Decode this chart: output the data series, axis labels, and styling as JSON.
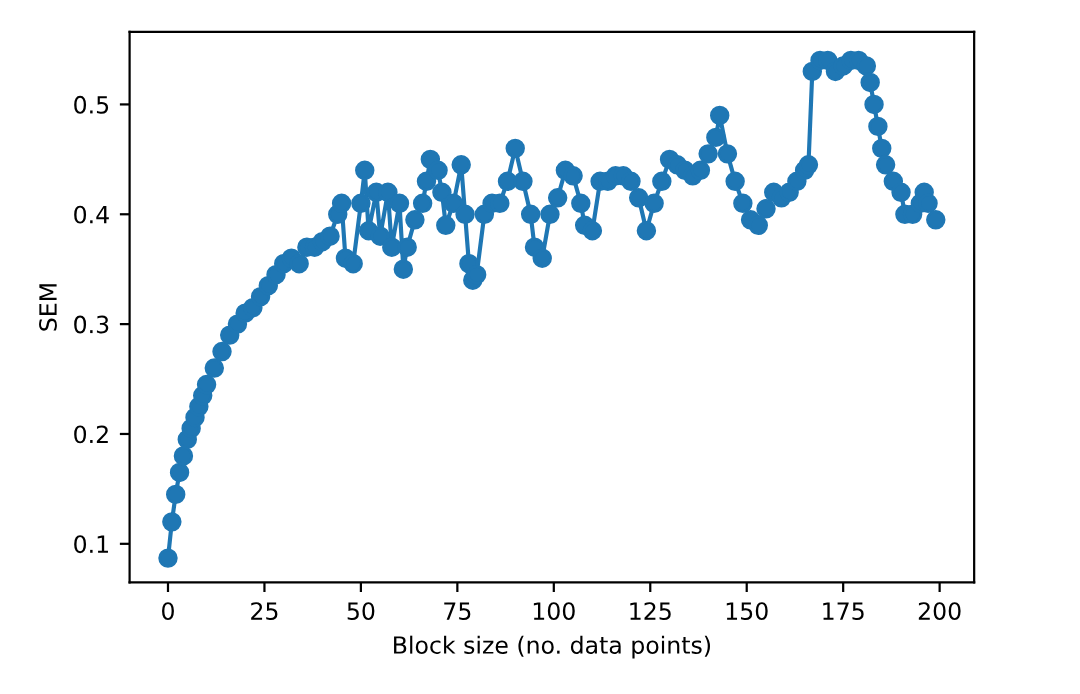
{
  "chart_data": {
    "type": "line",
    "xlabel": "Block size (no. data points)",
    "ylabel": "SEM",
    "x": [
      0,
      1,
      2,
      3,
      4,
      5,
      6,
      7,
      8,
      9,
      10,
      12,
      14,
      16,
      18,
      20,
      22,
      24,
      26,
      28,
      30,
      32,
      34,
      36,
      38,
      40,
      42,
      44,
      45,
      46,
      48,
      50,
      51,
      52,
      54,
      55,
      57,
      58,
      60,
      61,
      62,
      64,
      66,
      67,
      68,
      70,
      71,
      72,
      74,
      76,
      77,
      78,
      79,
      80,
      82,
      84,
      86,
      88,
      90,
      92,
      94,
      95,
      97,
      99,
      101,
      103,
      105,
      107,
      108,
      110,
      112,
      114,
      116,
      118,
      120,
      122,
      124,
      126,
      128,
      130,
      132,
      134,
      136,
      138,
      140,
      142,
      143,
      145,
      147,
      149,
      151,
      153,
      155,
      157,
      159,
      161,
      163,
      165,
      166,
      167,
      169,
      171,
      173,
      175,
      177,
      179,
      181,
      182,
      183,
      184,
      185,
      186,
      188,
      190,
      191,
      193,
      195,
      196,
      197,
      199
    ],
    "series": [
      {
        "color": "#1f77b4",
        "values": [
          0.087,
          0.12,
          0.145,
          0.165,
          0.18,
          0.195,
          0.205,
          0.215,
          0.225,
          0.235,
          0.245,
          0.26,
          0.275,
          0.29,
          0.3,
          0.31,
          0.315,
          0.325,
          0.335,
          0.345,
          0.355,
          0.36,
          0.355,
          0.37,
          0.37,
          0.375,
          0.38,
          0.4,
          0.41,
          0.36,
          0.355,
          0.41,
          0.44,
          0.385,
          0.42,
          0.38,
          0.42,
          0.37,
          0.41,
          0.35,
          0.37,
          0.395,
          0.41,
          0.43,
          0.45,
          0.44,
          0.42,
          0.39,
          0.41,
          0.445,
          0.4,
          0.355,
          0.34,
          0.345,
          0.4,
          0.41,
          0.41,
          0.43,
          0.46,
          0.43,
          0.4,
          0.37,
          0.36,
          0.4,
          0.415,
          0.44,
          0.435,
          0.41,
          0.39,
          0.385,
          0.43,
          0.43,
          0.435,
          0.435,
          0.43,
          0.415,
          0.385,
          0.41,
          0.43,
          0.45,
          0.445,
          0.44,
          0.435,
          0.44,
          0.455,
          0.47,
          0.49,
          0.455,
          0.43,
          0.41,
          0.395,
          0.39,
          0.405,
          0.42,
          0.415,
          0.42,
          0.43,
          0.44,
          0.445,
          0.53,
          0.54,
          0.54,
          0.53,
          0.535,
          0.54,
          0.54,
          0.535,
          0.52,
          0.5,
          0.48,
          0.46,
          0.445,
          0.43,
          0.42,
          0.4,
          0.4,
          0.41,
          0.42,
          0.41,
          0.395
        ]
      }
    ],
    "xlim": [
      -9.95,
      208.95
    ],
    "xticks": [
      0,
      25,
      50,
      75,
      100,
      125,
      150,
      175,
      200
    ],
    "ylim": [
      0.065,
      0.566
    ],
    "yticks": [
      0.1,
      0.2,
      0.3,
      0.4,
      0.5
    ],
    "marker": "circle",
    "line_style": "solid",
    "grid": false,
    "legend": false
  }
}
